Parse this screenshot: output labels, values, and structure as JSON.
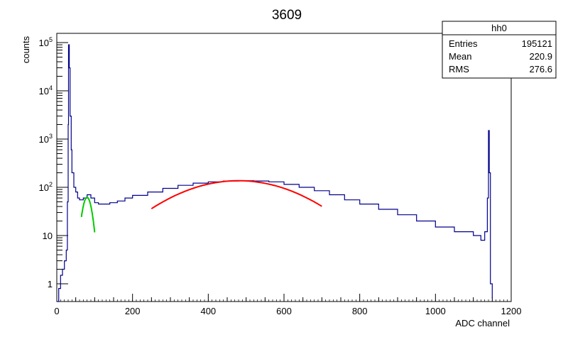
{
  "chart_data": {
    "type": "histogram",
    "title": "3609",
    "xlabel": "ADC channel",
    "ylabel": "counts",
    "xlim": [
      0,
      1200
    ],
    "ylim": [
      0.5,
      130000
    ],
    "yscale": "log",
    "grid": false,
    "x_ticks": [
      "0",
      "200",
      "400",
      "600",
      "800",
      "1000",
      "1200"
    ],
    "y_ticks": [
      {
        "value": 1,
        "label": "1"
      },
      {
        "value": 10,
        "label": "10"
      },
      {
        "value": 100,
        "base": "10",
        "exp": "2"
      },
      {
        "value": 1000,
        "base": "10",
        "exp": "3"
      },
      {
        "value": 10000,
        "base": "10",
        "exp": "4"
      },
      {
        "value": 100000,
        "base": "10",
        "exp": "5"
      }
    ],
    "stats_box": {
      "name": "hh0",
      "rows": [
        {
          "label": "Entries",
          "value": "195121"
        },
        {
          "label": "Mean",
          "value": "220.9"
        },
        {
          "label": "RMS",
          "value": "276.6"
        }
      ]
    },
    "histogram": {
      "color": "#00008b",
      "points": [
        [
          0,
          0
        ],
        [
          5,
          0.8
        ],
        [
          10,
          1.5
        ],
        [
          15,
          2
        ],
        [
          20,
          3
        ],
        [
          25,
          5
        ],
        [
          28,
          50
        ],
        [
          30,
          2000
        ],
        [
          31,
          90000
        ],
        [
          33,
          30000
        ],
        [
          35,
          3000
        ],
        [
          38,
          600
        ],
        [
          40,
          200
        ],
        [
          45,
          100
        ],
        [
          50,
          80
        ],
        [
          55,
          60
        ],
        [
          60,
          55
        ],
        [
          70,
          60
        ],
        [
          80,
          70
        ],
        [
          90,
          60
        ],
        [
          100,
          48
        ],
        [
          110,
          45
        ],
        [
          120,
          45
        ],
        [
          140,
          48
        ],
        [
          160,
          52
        ],
        [
          180,
          60
        ],
        [
          200,
          68
        ],
        [
          240,
          80
        ],
        [
          280,
          95
        ],
        [
          320,
          110
        ],
        [
          360,
          122
        ],
        [
          400,
          130
        ],
        [
          440,
          135
        ],
        [
          480,
          137
        ],
        [
          520,
          135
        ],
        [
          560,
          130
        ],
        [
          600,
          115
        ],
        [
          640,
          100
        ],
        [
          680,
          85
        ],
        [
          720,
          70
        ],
        [
          760,
          55
        ],
        [
          800,
          45
        ],
        [
          850,
          35
        ],
        [
          900,
          27
        ],
        [
          950,
          20
        ],
        [
          1000,
          15
        ],
        [
          1050,
          12
        ],
        [
          1100,
          10
        ],
        [
          1120,
          8
        ],
        [
          1130,
          12
        ],
        [
          1137,
          60
        ],
        [
          1140,
          1500
        ],
        [
          1142,
          200
        ],
        [
          1145,
          1
        ],
        [
          1150,
          0.5
        ]
      ]
    },
    "fits": [
      {
        "name": "fit-1",
        "color": "#00cc00",
        "x_range": [
          65,
          100
        ],
        "peak_x": 80,
        "peak_y": 62
      },
      {
        "name": "fit-2",
        "color": "#ff0000",
        "x_range": [
          250,
          700
        ],
        "peak_x": 480,
        "peak_y": 137
      }
    ]
  }
}
